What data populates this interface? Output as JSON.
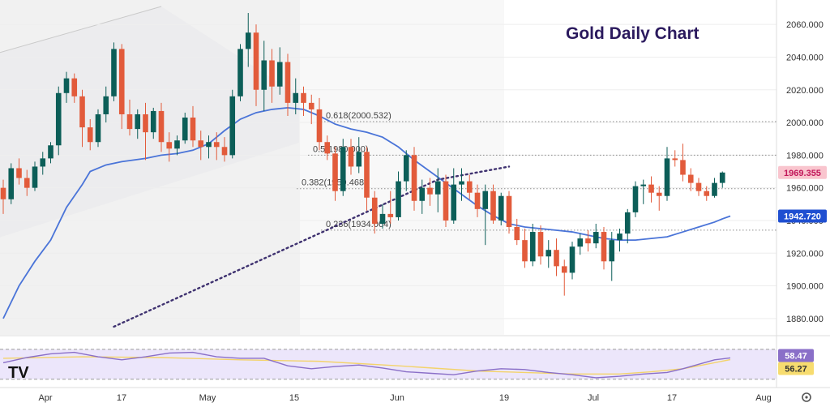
{
  "chart_data": {
    "type": "candlestick",
    "title": "Gold Daily Chart",
    "logo_text": "TV",
    "price_axis": {
      "min": 1870,
      "max": 2070,
      "ticks": [
        1880,
        1900,
        1920,
        1940,
        1960,
        1980,
        2000,
        2020,
        2040,
        2060
      ]
    },
    "time_axis": {
      "labels": [
        "Apr",
        "17",
        "May",
        "15",
        "Jun",
        "19",
        "Jul",
        "17",
        "Aug"
      ]
    },
    "price_badges": [
      {
        "label": "1969.355",
        "value": 1969.355,
        "color": "#f9c5ce",
        "text_color": "#c2185b"
      },
      {
        "label": "1942.720",
        "value": 1942.72,
        "color": "#1f4fd1",
        "text_color": "#ffffff"
      }
    ],
    "fibonacci": [
      {
        "label": "0.618(2000.532)",
        "value": 2000.532
      },
      {
        "label": "0.5(1980.000)",
        "value": 1980.0
      },
      {
        "label": "0.382(1959.468)",
        "value": 1959.468
      },
      {
        "label": "0.236(1934.064)",
        "value": 1934.064
      }
    ],
    "colors": {
      "up": "#0c5e58",
      "down": "#e25b3b",
      "ma": "#4a74d8",
      "rsi": "#8a6fc8",
      "rsi_ma": "#f3d36b",
      "rsi_band": "#ece6fb"
    },
    "candles": [
      [
        1960,
        1965,
        1944,
        1953
      ],
      [
        1953,
        1975,
        1950,
        1972
      ],
      [
        1972,
        1978,
        1962,
        1966
      ],
      [
        1966,
        1971,
        1955,
        1960
      ],
      [
        1960,
        1976,
        1958,
        1973
      ],
      [
        1973,
        1982,
        1968,
        1978
      ],
      [
        1978,
        1988,
        1975,
        1986
      ],
      [
        1986,
        2022,
        1980,
        2018
      ],
      [
        2018,
        2031,
        2012,
        2027
      ],
      [
        2027,
        2030,
        2012,
        2016
      ],
      [
        2016,
        2020,
        1985,
        1997
      ],
      [
        1997,
        2002,
        1983,
        1988
      ],
      [
        1988,
        2008,
        1985,
        2005
      ],
      [
        2005,
        2022,
        2000,
        2016
      ],
      [
        2016,
        2049,
        2013,
        2045
      ],
      [
        2045,
        2048,
        1996,
        2005
      ],
      [
        2005,
        2014,
        1992,
        1996
      ],
      [
        1996,
        2008,
        1990,
        2005
      ],
      [
        2005,
        2012,
        1977,
        1994
      ],
      [
        1994,
        2009,
        1990,
        2007
      ],
      [
        2007,
        2012,
        1982,
        1988
      ],
      [
        1988,
        1994,
        1976,
        1984
      ],
      [
        1984,
        1992,
        1980,
        1989
      ],
      [
        1989,
        2006,
        1987,
        2003
      ],
      [
        2003,
        2010,
        1985,
        1989
      ],
      [
        1989,
        1995,
        1977,
        1985
      ],
      [
        1985,
        1992,
        1978,
        1988
      ],
      [
        1988,
        1994,
        1977,
        1985
      ],
      [
        1985,
        1991,
        1976,
        1980
      ],
      [
        1980,
        2020,
        1978,
        2016
      ],
      [
        2016,
        2048,
        2013,
        2045
      ],
      [
        2045,
        2067,
        2034,
        2055
      ],
      [
        2055,
        2060,
        2010,
        2020
      ],
      [
        2020,
        2050,
        2007,
        2038
      ],
      [
        2038,
        2045,
        2012,
        2022
      ],
      [
        2022,
        2046,
        2017,
        2037
      ],
      [
        2037,
        2042,
        2004,
        2012
      ],
      [
        2012,
        2027,
        2005,
        2018
      ],
      [
        2018,
        2022,
        2004,
        2012
      ],
      [
        2012,
        2017,
        1999,
        2008
      ],
      [
        2008,
        2015,
        1983,
        1988
      ],
      [
        1988,
        1992,
        1977,
        1981
      ],
      [
        1981,
        1985,
        1952,
        1958
      ],
      [
        1958,
        1990,
        1955,
        1985
      ],
      [
        1985,
        1990,
        1968,
        1973
      ],
      [
        1973,
        1991,
        1969,
        1982
      ],
      [
        1982,
        1985,
        1946,
        1954
      ],
      [
        1954,
        1958,
        1932,
        1938
      ],
      [
        1938,
        1950,
        1935,
        1944
      ],
      [
        1944,
        1958,
        1938,
        1942
      ],
      [
        1942,
        1970,
        1940,
        1964
      ],
      [
        1964,
        1983,
        1958,
        1980
      ],
      [
        1980,
        1985,
        1946,
        1952
      ],
      [
        1952,
        1965,
        1944,
        1960
      ],
      [
        1960,
        1966,
        1949,
        1956
      ],
      [
        1956,
        1972,
        1945,
        1964
      ],
      [
        1964,
        1968,
        1936,
        1940
      ],
      [
        1940,
        1972,
        1938,
        1962
      ],
      [
        1962,
        1972,
        1952,
        1964
      ],
      [
        1964,
        1968,
        1953,
        1957
      ],
      [
        1957,
        1962,
        1942,
        1947
      ],
      [
        1947,
        1962,
        1925,
        1958
      ],
      [
        1958,
        1962,
        1938,
        1940
      ],
      [
        1940,
        1957,
        1937,
        1955
      ],
      [
        1955,
        1958,
        1932,
        1936
      ],
      [
        1936,
        1941,
        1925,
        1928
      ],
      [
        1928,
        1935,
        1911,
        1915
      ],
      [
        1915,
        1938,
        1912,
        1933
      ],
      [
        1933,
        1937,
        1913,
        1918
      ],
      [
        1918,
        1928,
        1911,
        1922
      ],
      [
        1922,
        1929,
        1906,
        1912
      ],
      [
        1912,
        1916,
        1894,
        1908
      ],
      [
        1908,
        1927,
        1904,
        1924
      ],
      [
        1924,
        1932,
        1919,
        1929
      ],
      [
        1929,
        1934,
        1921,
        1926
      ],
      [
        1926,
        1938,
        1923,
        1933
      ],
      [
        1933,
        1936,
        1910,
        1915
      ],
      [
        1915,
        1933,
        1903,
        1928
      ],
      [
        1928,
        1935,
        1921,
        1932
      ],
      [
        1932,
        1947,
        1926,
        1945
      ],
      [
        1945,
        1964,
        1942,
        1961
      ],
      [
        1961,
        1965,
        1950,
        1962
      ],
      [
        1962,
        1967,
        1951,
        1957
      ],
      [
        1957,
        1961,
        1946,
        1955
      ],
      [
        1955,
        1985,
        1952,
        1978
      ],
      [
        1978,
        1983,
        1973,
        1977
      ],
      [
        1977,
        1987,
        1964,
        1968
      ],
      [
        1968,
        1972,
        1958,
        1963
      ],
      [
        1963,
        1966,
        1955,
        1958
      ],
      [
        1958,
        1961,
        1952,
        1955
      ],
      [
        1955,
        1966,
        1954,
        1963
      ],
      [
        1963,
        1970,
        1960,
        1969.355
      ]
    ],
    "ma20": [
      [
        0,
        1880
      ],
      [
        2,
        1900
      ],
      [
        4,
        1915
      ],
      [
        6,
        1928
      ],
      [
        8,
        1948
      ],
      [
        10,
        1962
      ],
      [
        11,
        1970
      ],
      [
        13,
        1974
      ],
      [
        15,
        1976
      ],
      [
        18,
        1978
      ],
      [
        20,
        1980
      ],
      [
        22,
        1981
      ],
      [
        24,
        1983
      ],
      [
        26,
        1987
      ],
      [
        28,
        1995
      ],
      [
        30,
        2002
      ],
      [
        32,
        2006
      ],
      [
        34,
        2008
      ],
      [
        36,
        2009
      ],
      [
        38,
        2008
      ],
      [
        40,
        2004
      ],
      [
        42,
        1999
      ],
      [
        44,
        1996
      ],
      [
        46,
        1994
      ],
      [
        48,
        1991
      ],
      [
        50,
        1985
      ],
      [
        52,
        1977
      ],
      [
        54,
        1970
      ],
      [
        56,
        1963
      ],
      [
        58,
        1956
      ],
      [
        60,
        1949
      ],
      [
        62,
        1943
      ],
      [
        64,
        1938
      ],
      [
        66,
        1936
      ],
      [
        68,
        1935
      ],
      [
        70,
        1934
      ],
      [
        72,
        1933
      ],
      [
        74,
        1931
      ],
      [
        76,
        1929
      ],
      [
        78,
        1928
      ],
      [
        80,
        1928
      ],
      [
        82,
        1929
      ],
      [
        84,
        1930
      ],
      [
        86,
        1933
      ],
      [
        88,
        1936
      ],
      [
        90,
        1939
      ],
      [
        91,
        1941
      ],
      [
        92,
        1942.72
      ]
    ],
    "trendline": [
      [
        14,
        1875
      ],
      [
        55,
        1965
      ],
      [
        64,
        1973
      ]
    ],
    "channel_upper": [
      [
        -1,
        2042
      ],
      [
        20,
        2071
      ]
    ],
    "rsi": {
      "min": 20,
      "max": 85,
      "upper": 70,
      "lower": 30,
      "labels": [
        {
          "label": "58.47",
          "value": 58.47
        },
        {
          "label": "56.27",
          "value": 56.27
        }
      ],
      "line": [
        [
          0,
          52
        ],
        [
          3,
          59
        ],
        [
          6,
          64
        ],
        [
          9,
          66
        ],
        [
          12,
          60
        ],
        [
          15,
          56
        ],
        [
          18,
          60
        ],
        [
          21,
          65
        ],
        [
          24,
          66
        ],
        [
          27,
          60
        ],
        [
          30,
          58
        ],
        [
          33,
          58
        ],
        [
          36,
          48
        ],
        [
          39,
          44
        ],
        [
          42,
          47
        ],
        [
          45,
          49
        ],
        [
          48,
          45
        ],
        [
          51,
          40
        ],
        [
          54,
          38
        ],
        [
          57,
          36
        ],
        [
          60,
          41
        ],
        [
          63,
          44
        ],
        [
          66,
          43
        ],
        [
          69,
          39
        ],
        [
          72,
          36
        ],
        [
          75,
          32
        ],
        [
          78,
          34
        ],
        [
          81,
          37
        ],
        [
          84,
          39
        ],
        [
          86,
          44
        ],
        [
          88,
          50
        ],
        [
          90,
          56
        ],
        [
          92,
          58.47
        ]
      ],
      "ma": [
        [
          0,
          58
        ],
        [
          10,
          60
        ],
        [
          20,
          59
        ],
        [
          30,
          56
        ],
        [
          40,
          54
        ],
        [
          50,
          48
        ],
        [
          60,
          41
        ],
        [
          66,
          39
        ],
        [
          72,
          37
        ],
        [
          78,
          37
        ],
        [
          82,
          40
        ],
        [
          86,
          44
        ],
        [
          89,
          50
        ],
        [
          92,
          56.27
        ]
      ]
    }
  }
}
